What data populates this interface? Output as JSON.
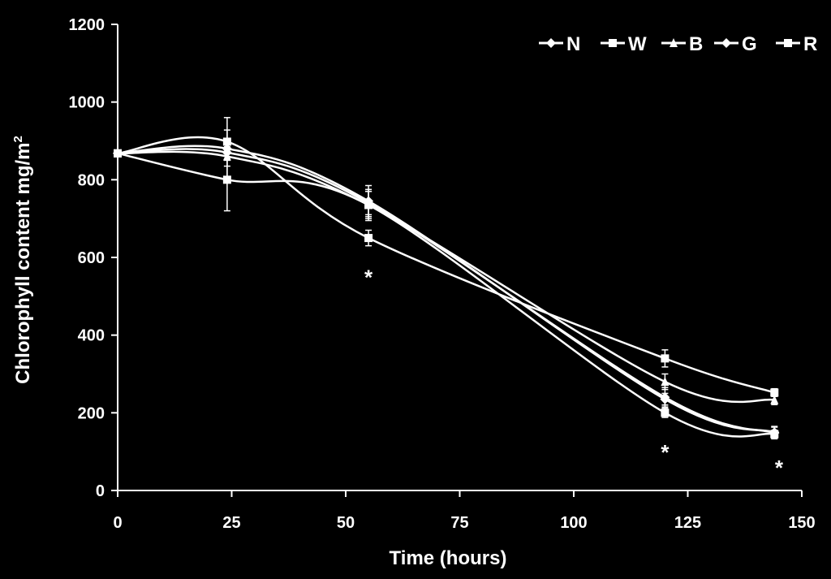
{
  "chart_data": {
    "type": "line",
    "title": "",
    "xlabel": "Time (hours)",
    "ylabel": "Chlorophyll content mg/m",
    "ylabel_superscript": "2",
    "xlim": [
      0,
      150
    ],
    "ylim": [
      0,
      1200
    ],
    "x_ticks": [
      0,
      25,
      50,
      75,
      100,
      125,
      150
    ],
    "y_ticks": [
      0,
      200,
      400,
      600,
      800,
      1000,
      1200
    ],
    "x_tick_labels": [
      "0",
      "25",
      "50",
      "75",
      "100",
      "125",
      "150"
    ],
    "y_tick_labels": [
      "0",
      "200",
      "400",
      "600",
      "800",
      "1000",
      "1200"
    ],
    "grid": false,
    "legend_position": "top-right",
    "line_color": "#ffffff",
    "background_color": "#000000",
    "series": [
      {
        "name": "N",
        "marker": "diamond",
        "x": [
          0,
          24,
          55,
          120,
          144
        ],
        "y": [
          868,
          870,
          740,
          240,
          148
        ],
        "err": [
          0,
          20,
          30,
          25,
          15
        ]
      },
      {
        "name": "W",
        "marker": "square",
        "x": [
          0,
          24,
          55,
          120,
          144
        ],
        "y": [
          868,
          800,
          735,
          200,
          145
        ],
        "err": [
          0,
          80,
          40,
          12,
          10
        ]
      },
      {
        "name": "B",
        "marker": "triangle",
        "x": [
          0,
          24,
          55,
          120,
          144
        ],
        "y": [
          868,
          860,
          735,
          280,
          233
        ],
        "err": [
          0,
          25,
          35,
          20,
          12
        ]
      },
      {
        "name": "G",
        "marker": "diamond",
        "x": [
          0,
          24,
          55,
          120,
          144
        ],
        "y": [
          868,
          880,
          745,
          235,
          150
        ],
        "err": [
          0,
          80,
          40,
          15,
          15
        ]
      },
      {
        "name": "R",
        "marker": "square",
        "x": [
          0,
          24,
          55,
          120,
          144
        ],
        "y": [
          868,
          898,
          650,
          340,
          252
        ],
        "err": [
          0,
          30,
          20,
          22,
          10
        ]
      }
    ],
    "annotations": [
      {
        "text": "*",
        "x": 55,
        "y": 555
      },
      {
        "text": "*",
        "x": 120,
        "y": 105
      },
      {
        "text": "*",
        "x": 145,
        "y": 65
      }
    ]
  }
}
